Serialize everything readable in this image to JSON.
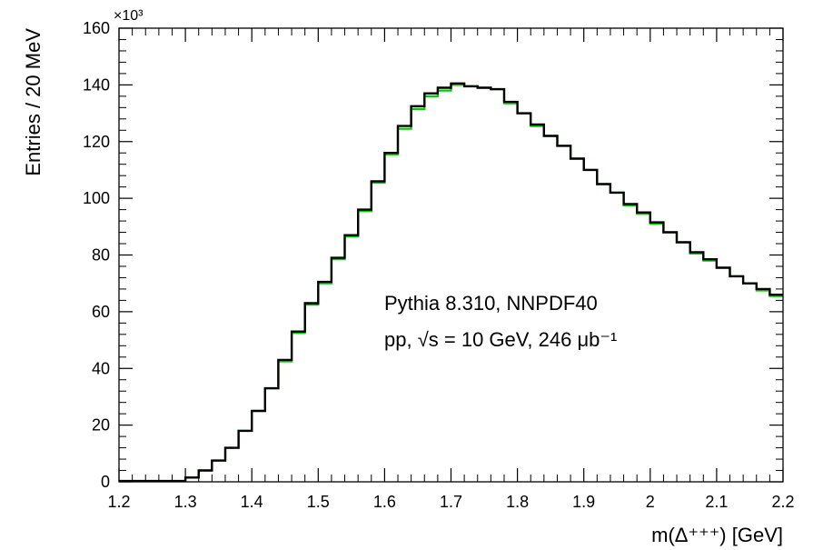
{
  "chart_data": {
    "type": "histogram",
    "xlabel": "m(Δ⁺⁺⁺) [GeV]",
    "ylabel": "Entries / 20 MeV",
    "y_multiplier": "×10³",
    "xlim": [
      1.2,
      2.2
    ],
    "ylim": [
      0,
      160
    ],
    "x_ticks": [
      "1.2",
      "1.3",
      "1.4",
      "1.5",
      "1.6",
      "1.7",
      "1.8",
      "1.9",
      "2",
      "2.1",
      "2.2"
    ],
    "y_ticks": [
      "0",
      "20",
      "40",
      "60",
      "80",
      "100",
      "120",
      "140",
      "160"
    ],
    "bin_width": 0.02,
    "bin_edges_start": 1.2,
    "grid": false,
    "annotation": {
      "line1": "Pythia 8.310, NNPDF40",
      "line2": "pp, √s = 10 GeV, 246 μb⁻¹"
    },
    "series": [
      {
        "color": "#000000",
        "values": [
          0.3,
          0.3,
          0.3,
          0.3,
          0.3,
          1.5,
          4,
          7.5,
          12,
          18,
          25,
          33,
          43,
          53,
          63,
          70.5,
          79,
          87,
          96,
          106,
          116,
          125.5,
          132.5,
          137,
          139,
          140.5,
          139.5,
          139,
          138.5,
          134,
          130,
          126,
          122,
          118.5,
          114,
          110,
          105,
          102,
          98,
          95,
          91.5,
          88,
          84.5,
          81,
          78.5,
          75.5,
          72.5,
          70,
          68,
          66
        ]
      },
      {
        "color": "#00cc00",
        "values": [
          0.3,
          0.3,
          0.3,
          0.3,
          0.3,
          1.5,
          4,
          7.5,
          12,
          18,
          25,
          33,
          42.5,
          52.5,
          62.5,
          70,
          78.5,
          86.5,
          95.5,
          105.5,
          115.5,
          124.5,
          131.5,
          136,
          138,
          140,
          139.5,
          139,
          138.5,
          133.5,
          130,
          125.5,
          122,
          118.5,
          114,
          110,
          105,
          102,
          97.5,
          94.5,
          91,
          88,
          84.5,
          80.5,
          78,
          75.5,
          72.5,
          70,
          67.5,
          65.5
        ]
      }
    ]
  }
}
